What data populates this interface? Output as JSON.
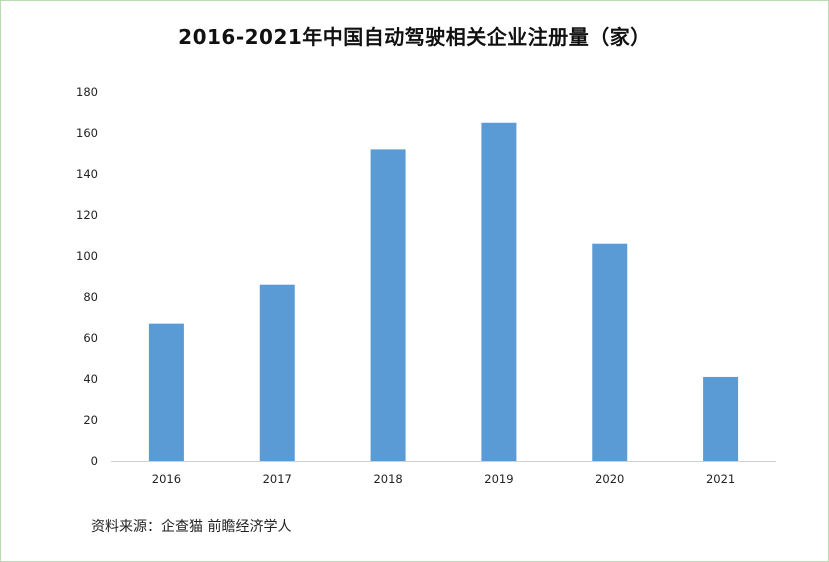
{
  "chart_data": {
    "type": "bar",
    "title": "2016-2021年中国自动驾驶相关企业注册量（家）",
    "categories": [
      "2016",
      "2017",
      "2018",
      "2019",
      "2020",
      "2021"
    ],
    "values": [
      67,
      86,
      152,
      165,
      106,
      41
    ],
    "xlabel": "",
    "ylabel": "",
    "ylim": [
      0,
      180
    ],
    "yticks": [
      0,
      20,
      40,
      60,
      80,
      100,
      120,
      140,
      160,
      180
    ],
    "grid": false,
    "legend": "none",
    "bar_color": "#5b9bd5"
  },
  "source": "资料来源：企查猫 前瞻经济学人"
}
